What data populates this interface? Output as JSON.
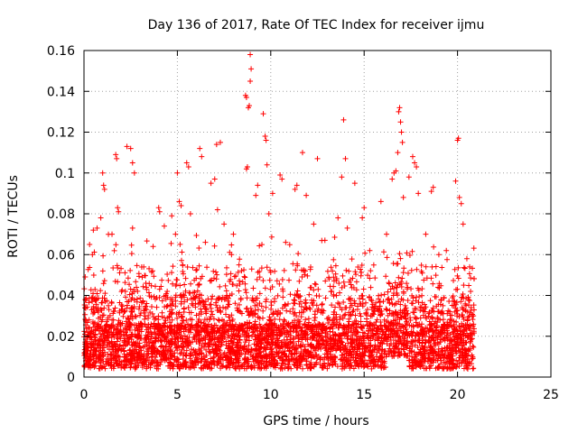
{
  "chart_data": {
    "type": "scatter",
    "title": "Day 136 of 2017, Rate Of TEC Index for receiver ijmu",
    "xlabel": "GPS time / hours",
    "ylabel": "ROTI / TECUs",
    "xlim": [
      0,
      25
    ],
    "ylim": [
      0,
      0.16
    ],
    "x_ticks": [
      "0",
      "5",
      "10",
      "15",
      "20",
      "25"
    ],
    "y_ticks": [
      "0",
      "0.02",
      "0.04",
      "0.06",
      "0.08",
      "0.1",
      "0.12",
      "0.14",
      "0.16"
    ],
    "grid": true,
    "marker": "plus",
    "series": [
      {
        "name": "ROTI",
        "color": "#ff0000",
        "x_range": [
          0,
          20.9
        ],
        "notes": "dense cloud of points, bulk 0.005-0.04 TECU",
        "points": [
          [
            0.05,
            0.034
          ],
          [
            0.1,
            0.028
          ],
          [
            0.2,
            0.022
          ],
          [
            0.3,
            0.065
          ],
          [
            0.45,
            0.06
          ],
          [
            0.5,
            0.072
          ],
          [
            0.7,
            0.073
          ],
          [
            0.9,
            0.078
          ],
          [
            1.0,
            0.1
          ],
          [
            1.05,
            0.094
          ],
          [
            1.1,
            0.092
          ],
          [
            1.5,
            0.07
          ],
          [
            1.7,
            0.109
          ],
          [
            1.75,
            0.107
          ],
          [
            1.8,
            0.083
          ],
          [
            1.85,
            0.081
          ],
          [
            2.3,
            0.113
          ],
          [
            2.5,
            0.112
          ],
          [
            2.6,
            0.105
          ],
          [
            2.7,
            0.1
          ],
          [
            2.6,
            0.073
          ],
          [
            3.2,
            0.054
          ],
          [
            3.7,
            0.064
          ],
          [
            4.0,
            0.083
          ],
          [
            4.05,
            0.081
          ],
          [
            4.3,
            0.074
          ],
          [
            4.7,
            0.079
          ],
          [
            4.9,
            0.07
          ],
          [
            5.0,
            0.1
          ],
          [
            5.1,
            0.086
          ],
          [
            5.2,
            0.084
          ],
          [
            5.5,
            0.105
          ],
          [
            5.6,
            0.103
          ],
          [
            5.7,
            0.08
          ],
          [
            6.2,
            0.112
          ],
          [
            6.3,
            0.108
          ],
          [
            6.5,
            0.066
          ],
          [
            6.8,
            0.095
          ],
          [
            7.0,
            0.097
          ],
          [
            7.1,
            0.114
          ],
          [
            7.3,
            0.115
          ],
          [
            7.15,
            0.082
          ],
          [
            7.5,
            0.075
          ],
          [
            7.9,
            0.06
          ],
          [
            8.0,
            0.07
          ],
          [
            8.3,
            0.055
          ],
          [
            8.7,
            0.102
          ],
          [
            8.75,
            0.103
          ],
          [
            8.8,
            0.132
          ],
          [
            8.85,
            0.133
          ],
          [
            8.65,
            0.138
          ],
          [
            8.7,
            0.137
          ],
          [
            8.9,
            0.158
          ],
          [
            8.95,
            0.151
          ],
          [
            8.9,
            0.145
          ],
          [
            9.2,
            0.089
          ],
          [
            9.3,
            0.094
          ],
          [
            9.6,
            0.129
          ],
          [
            9.7,
            0.118
          ],
          [
            9.75,
            0.116
          ],
          [
            9.8,
            0.104
          ],
          [
            9.9,
            0.08
          ],
          [
            10.1,
            0.09
          ],
          [
            10.5,
            0.099
          ],
          [
            10.6,
            0.097
          ],
          [
            10.8,
            0.066
          ],
          [
            11.3,
            0.092
          ],
          [
            11.4,
            0.094
          ],
          [
            11.7,
            0.11
          ],
          [
            11.9,
            0.089
          ],
          [
            12.3,
            0.075
          ],
          [
            12.5,
            0.107
          ],
          [
            12.9,
            0.067
          ],
          [
            13.3,
            0.052
          ],
          [
            13.6,
            0.078
          ],
          [
            13.8,
            0.098
          ],
          [
            13.9,
            0.126
          ],
          [
            14.0,
            0.107
          ],
          [
            14.1,
            0.073
          ],
          [
            14.5,
            0.095
          ],
          [
            14.9,
            0.078
          ],
          [
            15.0,
            0.083
          ],
          [
            15.3,
            0.062
          ],
          [
            15.9,
            0.086
          ],
          [
            16.2,
            0.07
          ],
          [
            16.5,
            0.097
          ],
          [
            16.6,
            0.1
          ],
          [
            16.7,
            0.101
          ],
          [
            16.8,
            0.11
          ],
          [
            16.85,
            0.13
          ],
          [
            16.9,
            0.132
          ],
          [
            16.95,
            0.125
          ],
          [
            17.0,
            0.12
          ],
          [
            17.05,
            0.115
          ],
          [
            17.1,
            0.088
          ],
          [
            17.4,
            0.098
          ],
          [
            17.6,
            0.108
          ],
          [
            17.7,
            0.105
          ],
          [
            17.8,
            0.103
          ],
          [
            17.9,
            0.09
          ],
          [
            18.3,
            0.07
          ],
          [
            18.6,
            0.091
          ],
          [
            18.7,
            0.093
          ],
          [
            19.0,
            0.06
          ],
          [
            19.4,
            0.062
          ],
          [
            19.9,
            0.096
          ],
          [
            20.0,
            0.116
          ],
          [
            20.05,
            0.117
          ],
          [
            20.1,
            0.088
          ],
          [
            20.2,
            0.085
          ],
          [
            20.3,
            0.075
          ],
          [
            20.5,
            0.058
          ],
          [
            20.7,
            0.042
          ],
          [
            20.85,
            0.03
          ]
        ]
      }
    ]
  }
}
